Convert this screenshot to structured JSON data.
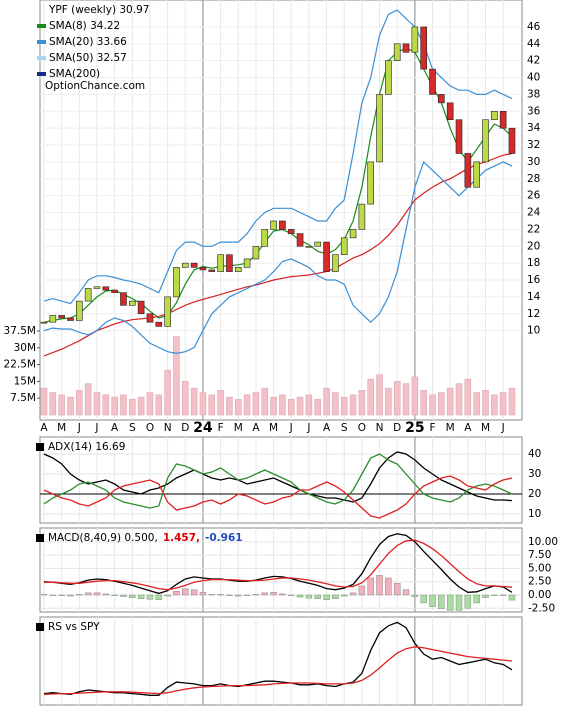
{
  "chart_data": {
    "type": "candlestick",
    "categories": [
      "A",
      null,
      "M",
      null,
      "J",
      null,
      "J",
      null,
      "A",
      null,
      "S",
      null,
      "O",
      null,
      "N",
      null,
      "D",
      null,
      "24",
      null,
      "F",
      null,
      "M",
      null,
      "A",
      null,
      "M",
      null,
      "J",
      null,
      "J",
      null,
      "A",
      null,
      "S",
      null,
      "O",
      null,
      "N",
      null,
      "D",
      null,
      "25",
      null,
      "F",
      null,
      "M",
      null,
      "A",
      null,
      "M",
      null,
      "J",
      null
    ],
    "legend": [
      {
        "label": "YPF (weekly) 30.97"
      },
      {
        "label": "SMA(8) 34.22",
        "color": "#1a8a1a"
      },
      {
        "label": "SMA(20) 33.66",
        "color": "#3a8fd6"
      },
      {
        "label": "SMA(50) 32.57",
        "color": "#a8d4f5"
      },
      {
        "label": "SMA(200)",
        "color": "#1b2a8c"
      }
    ],
    "watermark": "OptionChance.com",
    "price": {
      "close": [
        11,
        11.8,
        11.5,
        11.2,
        13.5,
        15,
        15.2,
        14.8,
        14.5,
        13,
        13.5,
        12,
        11,
        10.5,
        14,
        17.5,
        18,
        17.5,
        17.2,
        17,
        19,
        17,
        17.5,
        18.5,
        20,
        22,
        23,
        22,
        21.5,
        20,
        20,
        20.5,
        17,
        19,
        21,
        22,
        25,
        30,
        38,
        42,
        44,
        43,
        46,
        41,
        38,
        37,
        35,
        31,
        27,
        30,
        35,
        36,
        34,
        31
      ],
      "ylim": [
        0,
        48.6
      ],
      "yticks": [
        10,
        12,
        14,
        16,
        18,
        20,
        22,
        24,
        26,
        28,
        30,
        32,
        34,
        36,
        38,
        40,
        42,
        44,
        46
      ],
      "up_color": "#bcd94a",
      "down_color": "#d42a2a"
    },
    "series": [
      {
        "color": "#1a8a1a",
        "values": [
          11,
          11.2,
          11.4,
          11.5,
          12,
          13,
          14,
          14.7,
          14.8,
          14.3,
          13.8,
          13.2,
          12.3,
          11.5,
          11.8,
          13.3,
          15.5,
          17.2,
          17.6,
          17.4,
          17.6,
          17.7,
          17.8,
          18,
          19,
          20.5,
          21.8,
          22,
          21.5,
          20.7,
          20.2,
          19.4,
          19.1,
          19.6,
          20.8,
          23,
          27,
          33,
          38,
          42,
          43,
          43.5,
          43,
          41,
          39,
          37,
          34,
          31.5,
          30,
          31.5,
          33,
          34.5,
          34,
          33
        ]
      },
      {
        "color": "#d62020",
        "values": [
          7,
          7.4,
          7.8,
          8.3,
          8.8,
          9.4,
          10,
          10.4,
          10.8,
          11.1,
          11.3,
          11.4,
          11.5,
          11.7,
          12,
          12.5,
          13,
          13.4,
          13.7,
          14,
          14.3,
          14.6,
          14.9,
          15.2,
          15.4,
          15.7,
          16,
          16.2,
          16.4,
          16.5,
          16.6,
          16.8,
          17,
          17.4,
          18,
          18.6,
          19,
          19.6,
          20.3,
          21.3,
          22.5,
          24,
          25.5,
          26.3,
          27,
          27.6,
          28,
          28.6,
          29.2,
          29.7,
          30,
          30.4,
          30.8,
          31
        ]
      },
      {
        "color": "#3a8fd6",
        "values": [
          13.5,
          13.8,
          13.5,
          13.2,
          14.5,
          16,
          16.5,
          16.5,
          16.3,
          16,
          15.8,
          15.5,
          15,
          14.5,
          17,
          19.5,
          20.5,
          20.5,
          20,
          20,
          20.5,
          20.5,
          20.5,
          21.5,
          23,
          24,
          24.5,
          24.5,
          24.5,
          24,
          23.5,
          23,
          23,
          24.5,
          25.5,
          31,
          37,
          40,
          45,
          47.5,
          48,
          47,
          46,
          44,
          41,
          40,
          39,
          38.5,
          38.5,
          38,
          38,
          38.5,
          38,
          37.5
        ]
      },
      {
        "color": "#3a8fd6",
        "values": [
          10,
          10.3,
          10.2,
          10.2,
          9.8,
          9.5,
          10,
          11,
          11.5,
          11.2,
          10.5,
          9.5,
          8.5,
          8,
          7.5,
          7.3,
          7.5,
          8,
          10,
          12,
          13,
          14,
          14.5,
          15,
          15.5,
          16,
          17,
          18.2,
          18.5,
          18,
          17.5,
          16.5,
          16,
          16,
          15.5,
          13,
          12,
          11,
          12,
          14,
          17,
          22,
          27,
          30,
          29,
          28,
          27,
          26,
          27,
          28,
          29,
          29.5,
          30,
          29.5
        ]
      }
    ],
    "volume": {
      "values": [
        12000000,
        10000000,
        9000000,
        8000000,
        11000000,
        14000000,
        10000000,
        9000000,
        8000000,
        9000000,
        7000000,
        8000000,
        10000000,
        9000000,
        20000000,
        35000000,
        15000000,
        12000000,
        10000000,
        9000000,
        11000000,
        8000000,
        7000000,
        9000000,
        10000000,
        12000000,
        8000000,
        9000000,
        7000000,
        8000000,
        9000000,
        7000000,
        12000000,
        10000000,
        8000000,
        9000000,
        11000000,
        16000000,
        18000000,
        12000000,
        15000000,
        14000000,
        17000000,
        11000000,
        9000000,
        10000000,
        12000000,
        14000000,
        16000000,
        10000000,
        11000000,
        9000000,
        10000000,
        12000000
      ],
      "ylim": [
        0,
        183000000
      ],
      "yticks": [
        {
          "value": 7500000,
          "label": "7.5M"
        },
        {
          "value": 15000000,
          "label": "15M"
        },
        {
          "value": 22500000,
          "label": "22.5M"
        },
        {
          "value": 30000000,
          "label": "30M"
        },
        {
          "value": 37500000,
          "label": "37.5M"
        }
      ],
      "color": "#f3c0c8"
    },
    "panels": [
      {
        "type": "line",
        "title": [
          {
            "text": "ADX(14) 16.69",
            "color": "#000000"
          }
        ],
        "ylim": [
          5.5,
          48.5
        ],
        "yticks": [
          10,
          20,
          30,
          40
        ],
        "hline": 20,
        "series": [
          {
            "color": "#000000",
            "values": [
              40,
              38,
              35,
              30,
              27,
              25,
              26,
              27,
              25,
              22,
              21,
              20,
              22,
              23,
              25,
              28,
              30,
              32,
              30,
              28,
              27,
              28,
              27,
              25,
              26,
              27,
              28,
              26,
              24,
              22,
              20,
              19,
              18,
              18,
              17,
              16,
              18,
              25,
              33,
              38,
              41,
              40,
              37,
              33,
              30,
              27,
              25,
              23,
              21,
              19,
              18,
              17,
              17,
              16.69
            ]
          },
          {
            "color": "#2e8b2e",
            "values": [
              15,
              18,
              20,
              22,
              25,
              26,
              24,
              22,
              18,
              16,
              15,
              14,
              13,
              14,
              28,
              35,
              34,
              32,
              30,
              31,
              33,
              30,
              27,
              28,
              30,
              32,
              30,
              28,
              26,
              22,
              20,
              18,
              16,
              15,
              17,
              22,
              30,
              38,
              40,
              37,
              35,
              30,
              25,
              20,
              18,
              17,
              16,
              18,
              22,
              24,
              25,
              24,
              22,
              20
            ]
          },
          {
            "color": "#e02020",
            "values": [
              22,
              20,
              18,
              17,
              15,
              14,
              16,
              18,
              22,
              24,
              25,
              26,
              27,
              25,
              16,
              12,
              13,
              14,
              16,
              17,
              15,
              17,
              20,
              19,
              17,
              15,
              16,
              18,
              19,
              22,
              22,
              24,
              26,
              24,
              21,
              17,
              13,
              9,
              8,
              10,
              12,
              15,
              20,
              24,
              26,
              28,
              29,
              27,
              24,
              23,
              22,
              25,
              27,
              28
            ]
          }
        ]
      },
      {
        "type": "macd",
        "title": [
          {
            "text": "MACD(8,40,9) 0.500,",
            "color": "#000000"
          },
          {
            "text": "1.457,",
            "color": "#e00000"
          },
          {
            "text": "-0.961",
            "color": "#1f4fbf"
          }
        ],
        "ylim": [
          -3.2,
          12.6
        ],
        "yticks": [
          {
            "value": 10,
            "label": "10.00"
          },
          {
            "value": 7.5,
            "label": "7.50"
          },
          {
            "value": 5,
            "label": "5.00"
          },
          {
            "value": 2.5,
            "label": "2.50"
          },
          {
            "value": 0,
            "label": "0.00"
          },
          {
            "value": -2.5,
            "label": "-2.50"
          }
        ],
        "histogram": {
          "up_color": "#f2b0bc",
          "down_color": "#a8dca0",
          "values": [
            0.1,
            0,
            -0.1,
            -0.2,
            0.1,
            0.4,
            0.4,
            0.2,
            -0.1,
            -0.3,
            -0.5,
            -0.7,
            -0.8,
            -0.9,
            -0.2,
            0.7,
            1.2,
            1,
            0.5,
            0.1,
            0.1,
            -0.1,
            -0.2,
            -0.1,
            0.1,
            0.4,
            0.5,
            0.2,
            -0.1,
            -0.4,
            -0.6,
            -0.7,
            -0.9,
            -0.7,
            -0.2,
            0.4,
            1.7,
            3.2,
            3.7,
            3.2,
            2.2,
            1,
            -0.3,
            -1.5,
            -2.2,
            -2.6,
            -2.9,
            -2.9,
            -2.5,
            -1.5,
            -0.5,
            0,
            -0.1,
            -0.961
          ]
        },
        "series": [
          {
            "color": "#000000",
            "values": [
              2.5,
              2.4,
              2.2,
              2,
              2.3,
              2.8,
              3,
              2.9,
              2.6,
              2.2,
              1.8,
              1.3,
              0.8,
              0.3,
              0.8,
              2,
              3,
              3.4,
              3.2,
              3,
              3,
              2.8,
              2.6,
              2.6,
              2.8,
              3.2,
              3.5,
              3.4,
              3.1,
              2.6,
              2.2,
              1.8,
              1.2,
              1,
              1.3,
              2,
              4,
              7,
              9.5,
              11,
              11.5,
              11.2,
              10,
              8.2,
              6.5,
              4.8,
              3,
              1.5,
              0.5,
              0.6,
              1.2,
              1.7,
              1.5,
              0.5
            ]
          },
          {
            "color": "#e02020",
            "values": [
              2.4,
              2.4,
              2.3,
              2.2,
              2.2,
              2.4,
              2.6,
              2.7,
              2.7,
              2.5,
              2.3,
              2,
              1.6,
              1.2,
              1,
              1.3,
              1.8,
              2.4,
              2.7,
              2.9,
              2.9,
              2.9,
              2.8,
              2.7,
              2.7,
              2.8,
              3,
              3.2,
              3.2,
              3,
              2.8,
              2.5,
              2.1,
              1.7,
              1.5,
              1.6,
              2.3,
              3.8,
              5.8,
              7.8,
              9.3,
              10.2,
              10.3,
              9.7,
              8.7,
              7.4,
              5.9,
              4.4,
              3,
              2.1,
              1.7,
              1.7,
              1.6,
              1.457
            ]
          }
        ]
      },
      {
        "type": "line",
        "title": [
          {
            "text": "RS vs SPY",
            "color": "#000000"
          }
        ],
        "ylim": [
          0,
          100
        ],
        "series": [
          {
            "color": "#000000",
            "values": [
              13,
              14,
              13,
              12,
              15,
              17,
              16,
              15,
              14,
              14,
              13,
              12,
              11,
              11,
              20,
              26,
              25,
              24,
              22,
              22,
              24,
              22,
              21,
              23,
              25,
              27,
              27,
              26,
              25,
              23,
              23,
              24,
              22,
              21,
              24,
              26,
              36,
              62,
              82,
              90,
              94,
              88,
              70,
              58,
              52,
              54,
              50,
              46,
              48,
              50,
              52,
              48,
              46,
              40
            ]
          },
          {
            "color": "#e02020",
            "values": [
              12,
              12.5,
              13,
              13,
              13.5,
              14,
              14.5,
              15,
              15,
              15,
              14.5,
              14,
              13.5,
              13,
              14,
              16,
              18,
              19.5,
              20.5,
              21,
              21.5,
              22,
              22,
              22,
              22.5,
              23,
              24,
              24.5,
              25,
              25,
              25,
              24.5,
              24,
              24,
              24,
              25,
              28,
              34,
              42,
              51,
              59,
              64,
              66,
              65,
              63,
              61,
              59,
              57,
              55,
              54,
              53,
              52,
              51,
              50
            ]
          }
        ]
      }
    ]
  }
}
